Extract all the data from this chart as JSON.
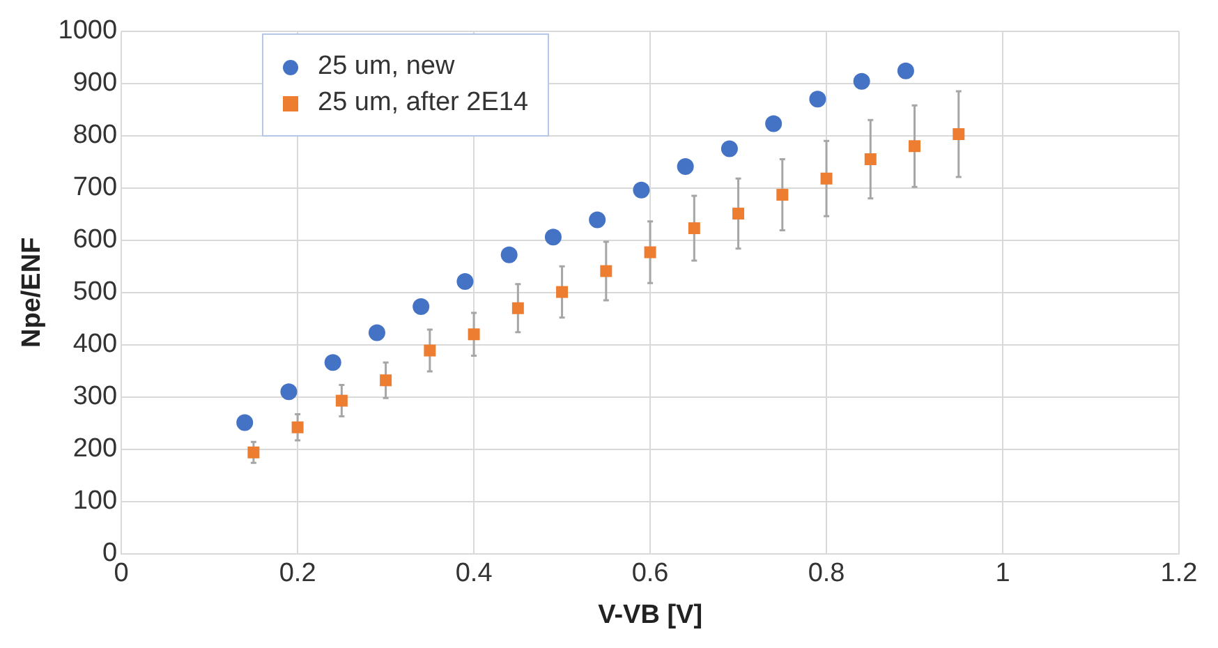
{
  "chart_data": {
    "type": "scatter",
    "xlabel": "V-VB [V]",
    "ylabel": "Npe/ENF",
    "xlim": [
      0,
      1.2
    ],
    "xticks": [
      0,
      0.2,
      0.4,
      0.6,
      0.8,
      1,
      1.2
    ],
    "ylim": [
      0,
      1000
    ],
    "yticks": [
      0,
      100,
      200,
      300,
      400,
      500,
      600,
      700,
      800,
      900,
      1000
    ],
    "grid": true,
    "legend": "top left",
    "series": [
      {
        "name": "25 um, new",
        "color": "#4472c4",
        "marker": "circle",
        "x": [
          0.14,
          0.19,
          0.24,
          0.29,
          0.34,
          0.39,
          0.44,
          0.49,
          0.54,
          0.59,
          0.64,
          0.69,
          0.74,
          0.79,
          0.84,
          0.89
        ],
        "values": [
          251,
          310,
          366,
          423,
          473,
          521,
          572,
          606,
          639,
          696,
          741,
          775,
          823,
          870,
          904,
          924
        ]
      },
      {
        "name": "25 um, after 2E14",
        "color": "#ed7d31",
        "marker": "square",
        "x": [
          0.15,
          0.2,
          0.25,
          0.3,
          0.35,
          0.4,
          0.45,
          0.5,
          0.55,
          0.6,
          0.65,
          0.7,
          0.75,
          0.8,
          0.85,
          0.9,
          0.95
        ],
        "values": [
          194,
          242,
          293,
          332,
          389,
          420,
          470,
          501,
          541,
          577,
          623,
          651,
          687,
          718,
          755,
          780,
          803
        ],
        "errors": [
          20,
          25,
          30,
          34,
          40,
          41,
          46,
          49,
          56,
          59,
          62,
          67,
          68,
          72,
          75,
          78,
          82
        ]
      }
    ]
  }
}
